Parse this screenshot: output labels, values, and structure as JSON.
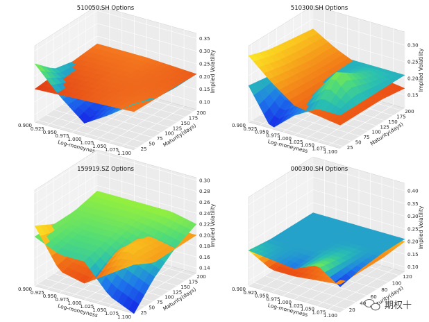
{
  "chart_data": [
    {
      "type": "surface3d",
      "title": "510050.SH Options",
      "xlabel": "Log-moneyness",
      "ylabel": "Maturity(days)",
      "zlabel": "Implied Volatility",
      "x_ticks": [
        "0.900",
        "0.925",
        "0.950",
        "0.975",
        "1.000",
        "1.025",
        "1.050",
        "1.075",
        "1.100"
      ],
      "y_ticks": [
        "25",
        "50",
        "75",
        "100",
        "125",
        "150",
        "175",
        "200"
      ],
      "z_ticks": [
        "0.10",
        "0.15",
        "0.20",
        "0.25",
        "0.30",
        "0.35"
      ],
      "xlim": [
        0.9,
        1.1
      ],
      "ylim": [
        15,
        210
      ],
      "zlim": [
        0.07,
        0.37
      ],
      "surfaces": [
        {
          "colormap": "rainbow",
          "grid_x": [
            0.9,
            0.95,
            1.0,
            1.05,
            1.1
          ],
          "grid_y": [
            15,
            75,
            140,
            210
          ],
          "z": [
            [
              0.3,
              0.2,
              0.12,
              0.18,
              0.25
            ],
            [
              0.23,
              0.18,
              0.16,
              0.19,
              0.22
            ],
            [
              0.21,
              0.2,
              0.19,
              0.2,
              0.21
            ],
            [
              0.2,
              0.2,
              0.2,
              0.21,
              0.21
            ]
          ]
        },
        {
          "colormap": "orange_red",
          "grid_x": [
            0.9,
            1.0,
            1.1
          ],
          "grid_y": [
            15,
            210
          ],
          "z": [
            [
              0.2,
              0.21,
              0.22
            ],
            [
              0.22,
              0.22,
              0.21
            ]
          ]
        }
      ]
    },
    {
      "type": "surface3d",
      "title": "510300.SH Options",
      "xlabel": "Log-moneyness",
      "ylabel": "Maturity(days)",
      "zlabel": "Implied Volatility",
      "x_ticks": [
        "0.900",
        "0.925",
        "0.950",
        "0.975",
        "1.000",
        "1.025",
        "1.050",
        "1.075",
        "1.100"
      ],
      "y_ticks": [
        "25",
        "50",
        "75",
        "100",
        "125",
        "150",
        "175",
        "200"
      ],
      "z_ticks": [
        "0.15",
        "0.20",
        "0.25",
        "0.30"
      ],
      "xlim": [
        0.9,
        1.1
      ],
      "ylim": [
        15,
        210
      ],
      "zlim": [
        0.11,
        0.34
      ],
      "surfaces": [
        {
          "colormap": "rainbow",
          "grid_x": [
            0.9,
            0.95,
            1.0,
            1.05,
            1.1
          ],
          "grid_y": [
            15,
            75,
            140,
            210
          ],
          "z": [
            [
              0.22,
              0.11,
              0.17,
              0.21,
              0.21
            ],
            [
              0.21,
              0.17,
              0.2,
              0.29,
              0.21
            ],
            [
              0.21,
              0.2,
              0.21,
              0.24,
              0.21
            ],
            [
              0.21,
              0.21,
              0.21,
              0.21,
              0.21
            ]
          ]
        },
        {
          "colormap": "yellow_red",
          "grid_x": [
            0.9,
            0.95,
            1.0,
            1.05,
            1.1
          ],
          "grid_y": [
            15,
            75,
            140,
            210
          ],
          "z": [
            [
              0.31,
              0.25,
              0.2,
              0.19,
              0.18
            ],
            [
              0.29,
              0.24,
              0.2,
              0.19,
              0.18
            ],
            [
              0.28,
              0.23,
              0.2,
              0.18,
              0.18
            ],
            [
              0.27,
              0.23,
              0.2,
              0.18,
              0.17
            ]
          ]
        }
      ]
    },
    {
      "type": "surface3d",
      "title": "159919.SZ Options",
      "xlabel": "Log-moneyness",
      "ylabel": "Maturity(days)",
      "zlabel": "Implied Volatility",
      "x_ticks": [
        "0.900",
        "0.925",
        "0.950",
        "0.975",
        "1.000",
        "1.025",
        "1.050",
        "1.075",
        "1.100"
      ],
      "y_ticks": [
        "25",
        "50",
        "75",
        "100",
        "125",
        "150",
        "175",
        "200"
      ],
      "z_ticks": [
        "0.14",
        "0.16",
        "0.18",
        "0.20",
        "0.22",
        "0.24",
        "0.26",
        "0.28",
        "0.30"
      ],
      "xlim": [
        0.9,
        1.1
      ],
      "ylim": [
        15,
        210
      ],
      "zlim": [
        0.13,
        0.305
      ],
      "surfaces": [
        {
          "colormap": "rainbow",
          "grid_x": [
            0.9,
            0.95,
            1.0,
            1.05,
            1.1
          ],
          "grid_y": [
            15,
            75,
            140,
            210
          ],
          "z": [
            [
              0.22,
              0.2,
              0.2,
              0.15,
              0.13
            ],
            [
              0.22,
              0.21,
              0.21,
              0.19,
              0.17
            ],
            [
              0.22,
              0.22,
              0.22,
              0.21,
              0.2
            ],
            [
              0.23,
              0.23,
              0.23,
              0.23,
              0.22
            ]
          ]
        },
        {
          "colormap": "yellow_red",
          "grid_x": [
            0.9,
            0.95,
            1.0,
            1.05,
            1.1
          ],
          "grid_y": [
            15,
            75,
            140,
            210
          ],
          "z": [
            [
              0.24,
              0.17,
              0.16,
              0.19,
              0.22
            ],
            [
              0.22,
              0.18,
              0.18,
              0.22,
              0.2
            ],
            [
              0.21,
              0.19,
              0.2,
              0.21,
              0.2
            ],
            [
              0.21,
              0.2,
              0.2,
              0.2,
              0.2
            ]
          ]
        }
      ]
    },
    {
      "type": "surface3d",
      "title": "000300.SH Options",
      "xlabel": "Log-moneyness",
      "ylabel": "Maturity(days)",
      "zlabel": "Implied Volatility",
      "x_ticks": [
        "0.900",
        "0.925",
        "0.950",
        "0.975",
        "1.000",
        "1.025",
        "1.050",
        "1.075",
        "1.100"
      ],
      "y_ticks": [
        "20",
        "40",
        "60",
        "80",
        "100",
        "120"
      ],
      "z_ticks": [
        "0.10",
        "0.15",
        "0.20",
        "0.25",
        "0.30",
        "0.35",
        "0.40"
      ],
      "xlim": [
        0.9,
        1.1
      ],
      "ylim": [
        10,
        130
      ],
      "zlim": [
        0.08,
        0.43
      ],
      "surfaces": [
        {
          "colormap": "rainbow",
          "grid_x": [
            0.9,
            0.95,
            1.0,
            1.05,
            1.1
          ],
          "grid_y": [
            10,
            50,
            90,
            130
          ],
          "z": [
            [
              0.22,
              0.21,
              0.2,
              0.24,
              0.18
            ],
            [
              0.21,
              0.21,
              0.21,
              0.22,
              0.2
            ],
            [
              0.21,
              0.21,
              0.21,
              0.21,
              0.21
            ],
            [
              0.21,
              0.21,
              0.21,
              0.21,
              0.21
            ]
          ]
        },
        {
          "colormap": "yellow_red",
          "grid_x": [
            0.9,
            0.95,
            1.0,
            1.05,
            1.1
          ],
          "grid_y": [
            10,
            50,
            90,
            130
          ],
          "z": [
            [
              0.22,
              0.17,
              0.17,
              0.18,
              0.19
            ],
            [
              0.21,
              0.18,
              0.18,
              0.19,
              0.19
            ],
            [
              0.2,
              0.19,
              0.19,
              0.19,
              0.19
            ],
            [
              0.2,
              0.2,
              0.2,
              0.2,
              0.2
            ]
          ]
        }
      ]
    }
  ],
  "watermark": {
    "icon": "wechat-icon",
    "text": "期权十"
  }
}
